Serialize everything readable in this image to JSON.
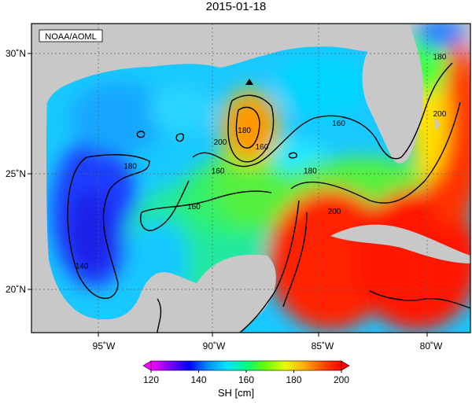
{
  "title": "2015-01-18",
  "credit": "NOAA/AOML",
  "colorbar": {
    "label": "SH [cm]",
    "ticks": [
      "120",
      "140",
      "160",
      "180",
      "200"
    ],
    "min": 120,
    "max": 200,
    "colors": [
      "#ff00ff",
      "#7a00ff",
      "#0000ff",
      "#0090ff",
      "#00e6ff",
      "#00ff80",
      "#66ff00",
      "#e6ff00",
      "#ffb000",
      "#ff5000",
      "#ff0000"
    ]
  },
  "axes": {
    "lon_ticks": [
      "95˚W",
      "90˚W",
      "85˚W",
      "80˚W"
    ],
    "lat_ticks": [
      "30˚N",
      "25˚N",
      "20˚N"
    ],
    "lon_range": [
      -98,
      -78
    ],
    "lat_range": [
      18,
      31
    ],
    "grid": "dotted"
  },
  "contour_labels": [
    {
      "text": "180",
      "lon": -79.4,
      "lat": 29.5
    },
    {
      "text": "200",
      "lon": -79.4,
      "lat": 27.1
    },
    {
      "text": "160",
      "lon": -84.0,
      "lat": 26.7
    },
    {
      "text": "180",
      "lon": -88.3,
      "lat": 26.4
    },
    {
      "text": "200",
      "lon": -89.4,
      "lat": 25.9
    },
    {
      "text": "160",
      "lon": -87.5,
      "lat": 25.7
    },
    {
      "text": "180",
      "lon": -93.5,
      "lat": 24.9
    },
    {
      "text": "160",
      "lon": -89.5,
      "lat": 24.7
    },
    {
      "text": "180",
      "lon": -85.3,
      "lat": 24.7
    },
    {
      "text": "160",
      "lon": -90.6,
      "lat": 23.2
    },
    {
      "text": "200",
      "lon": -84.2,
      "lat": 23.0
    },
    {
      "text": "140",
      "lon": -95.7,
      "lat": 20.7
    }
  ],
  "marker": {
    "type": "triangle",
    "lon": -88.0,
    "lat": 28.8
  }
}
